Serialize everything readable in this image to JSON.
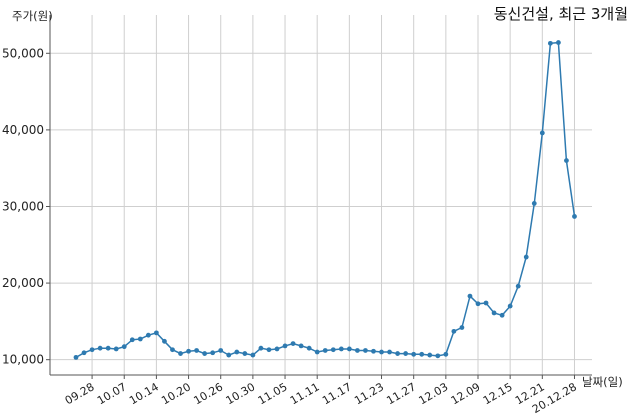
{
  "chart_data": {
    "type": "line",
    "title": "동신건설, 최근 3개월",
    "ylabel": "주가(원)",
    "xlabel": "날짜(일)",
    "ylim": [
      8000,
      55000
    ],
    "yticks": [
      10000,
      20000,
      30000,
      40000,
      50000
    ],
    "ytick_labels": [
      "10,000",
      "20,000",
      "30,000",
      "40,000",
      "50,000"
    ],
    "xtick_labels": [
      "09.28",
      "10.07",
      "10.14",
      "10.20",
      "10.26",
      "10.30",
      "11.05",
      "11.11",
      "11.17",
      "11.23",
      "11.27",
      "12.03",
      "12.09",
      "12.15",
      "12.21",
      "20.12.28"
    ],
    "xtick_index": [
      2,
      6,
      10,
      14,
      18,
      22,
      26,
      30,
      34,
      38,
      42,
      46,
      50,
      54,
      58,
      62
    ],
    "grid": true,
    "color": "#2e7ab0",
    "values": [
      10300,
      10900,
      11300,
      11500,
      11500,
      11400,
      11700,
      12600,
      12700,
      13200,
      13500,
      12400,
      11300,
      10800,
      11100,
      11200,
      10800,
      10900,
      11200,
      10600,
      11000,
      10800,
      10600,
      11500,
      11300,
      11400,
      11800,
      12100,
      11800,
      11500,
      11000,
      11200,
      11300,
      11400,
      11400,
      11200,
      11200,
      11100,
      11000,
      11000,
      10800,
      10800,
      10700,
      10700,
      10600,
      10500,
      10700,
      13700,
      14200,
      18300,
      17300,
      17400,
      16100,
      15800,
      17000,
      19600,
      23400,
      30400,
      39600,
      51300,
      51400,
      36000,
      28700
    ]
  }
}
